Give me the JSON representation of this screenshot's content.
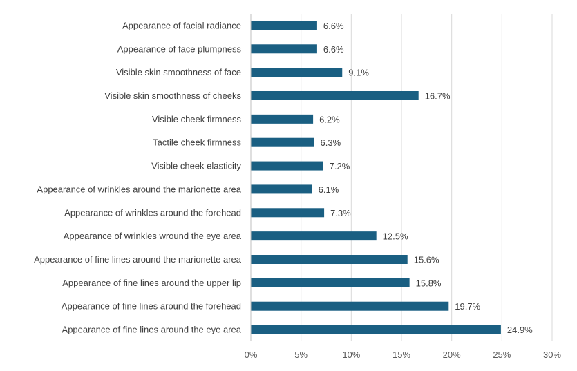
{
  "chart_data": {
    "type": "bar",
    "orientation": "horizontal",
    "categories": [
      "Appearance of facial radiance",
      "Appearance of face plumpness",
      "Visible skin smoothness of face",
      "Visible skin smoothness of cheeks",
      "Visible cheek firmness",
      "Tactile cheek firmness",
      "Visible cheek elasticity",
      "Appearance of wrinkles around the marionette area",
      "Appearance of wrinkles around the forehead",
      "Appearance of wrinkles wround the eye area",
      "Appearance of fine lines around the marionette area",
      "Appearance of fine lines around the upper lip",
      "Appearance of fine lines around the forehead",
      "Appearance of fine lines around the eye area"
    ],
    "values": [
      6.6,
      6.6,
      9.1,
      16.7,
      6.2,
      6.3,
      7.2,
      6.1,
      7.3,
      12.5,
      15.6,
      15.8,
      19.7,
      24.9
    ],
    "value_labels": [
      "6.6%",
      "6.6%",
      "9.1%",
      "16.7%",
      "6.2%",
      "6.3%",
      "7.2%",
      "6.1%",
      "7.3%",
      "12.5%",
      "15.6%",
      "15.8%",
      "19.7%",
      "24.9%"
    ],
    "xlim": [
      0,
      30
    ],
    "xticks": [
      0,
      5,
      10,
      15,
      20,
      25,
      30
    ],
    "xtick_labels": [
      "0%",
      "5%",
      "10%",
      "15%",
      "20%",
      "25%",
      "30%"
    ],
    "grid": true,
    "bar_color": "#1a5f82",
    "grid_color": "#d9d9d9",
    "title": "",
    "xlabel": "",
    "ylabel": ""
  }
}
